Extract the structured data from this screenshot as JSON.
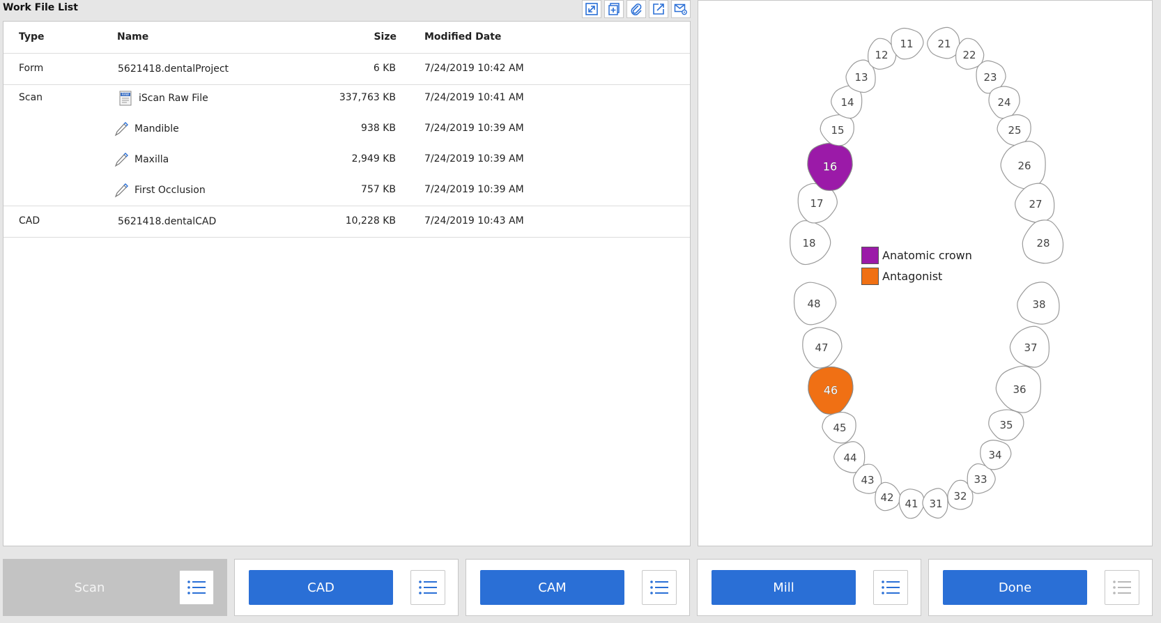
{
  "panel": {
    "title": "Work File List"
  },
  "toolbar": {
    "icons": [
      "expand-icon",
      "add-file-icon",
      "attach-icon",
      "export-icon",
      "mail-settings-icon"
    ]
  },
  "table": {
    "headers": {
      "type": "Type",
      "name": "Name",
      "size": "Size",
      "date": "Modified Date"
    },
    "groups": [
      {
        "type": "Form",
        "rows": [
          {
            "name": "5621418.dentalProject",
            "size": "6 KB",
            "date": "7/24/2019 10:42 AM",
            "icon": ""
          }
        ]
      },
      {
        "type": "Scan",
        "rows": [
          {
            "name": "iScan Raw File",
            "size": "337,763 KB",
            "date": "7/24/2019 10:41 AM",
            "icon": "raw-file-icon"
          },
          {
            "name": "Mandible",
            "size": "938 KB",
            "date": "7/24/2019 10:39 AM",
            "icon": "scan-wand-icon"
          },
          {
            "name": "Maxilla",
            "size": "2,949 KB",
            "date": "7/24/2019 10:39 AM",
            "icon": "scan-wand-icon"
          },
          {
            "name": "First Occlusion",
            "size": "757 KB",
            "date": "7/24/2019 10:39 AM",
            "icon": "scan-wand-icon"
          }
        ]
      },
      {
        "type": "CAD",
        "rows": [
          {
            "name": "5621418.dentalCAD",
            "size": "10,228 KB",
            "date": "7/24/2019 10:43 AM",
            "icon": ""
          }
        ]
      }
    ]
  },
  "tooth_chart": {
    "upper": [
      "18",
      "17",
      "16",
      "15",
      "14",
      "13",
      "12",
      "11",
      "21",
      "22",
      "23",
      "24",
      "25",
      "26",
      "27",
      "28"
    ],
    "lower": [
      "48",
      "47",
      "46",
      "45",
      "44",
      "43",
      "42",
      "41",
      "31",
      "32",
      "33",
      "34",
      "35",
      "36",
      "37",
      "38"
    ],
    "selected": {
      "16": "anatomic_crown",
      "46": "antagonist"
    },
    "colors": {
      "anatomic_crown": "#9b1aa8",
      "antagonist": "#f07014"
    },
    "legend": [
      {
        "key": "anatomic_crown",
        "label": "Anatomic crown"
      },
      {
        "key": "antagonist",
        "label": "Antagonist"
      }
    ]
  },
  "steps": [
    {
      "label": "Scan",
      "state": "disabled"
    },
    {
      "label": "CAD",
      "state": "active"
    },
    {
      "label": "CAM",
      "state": "active"
    },
    {
      "label": "Mill",
      "state": "active"
    },
    {
      "label": "Done",
      "state": "active"
    }
  ]
}
